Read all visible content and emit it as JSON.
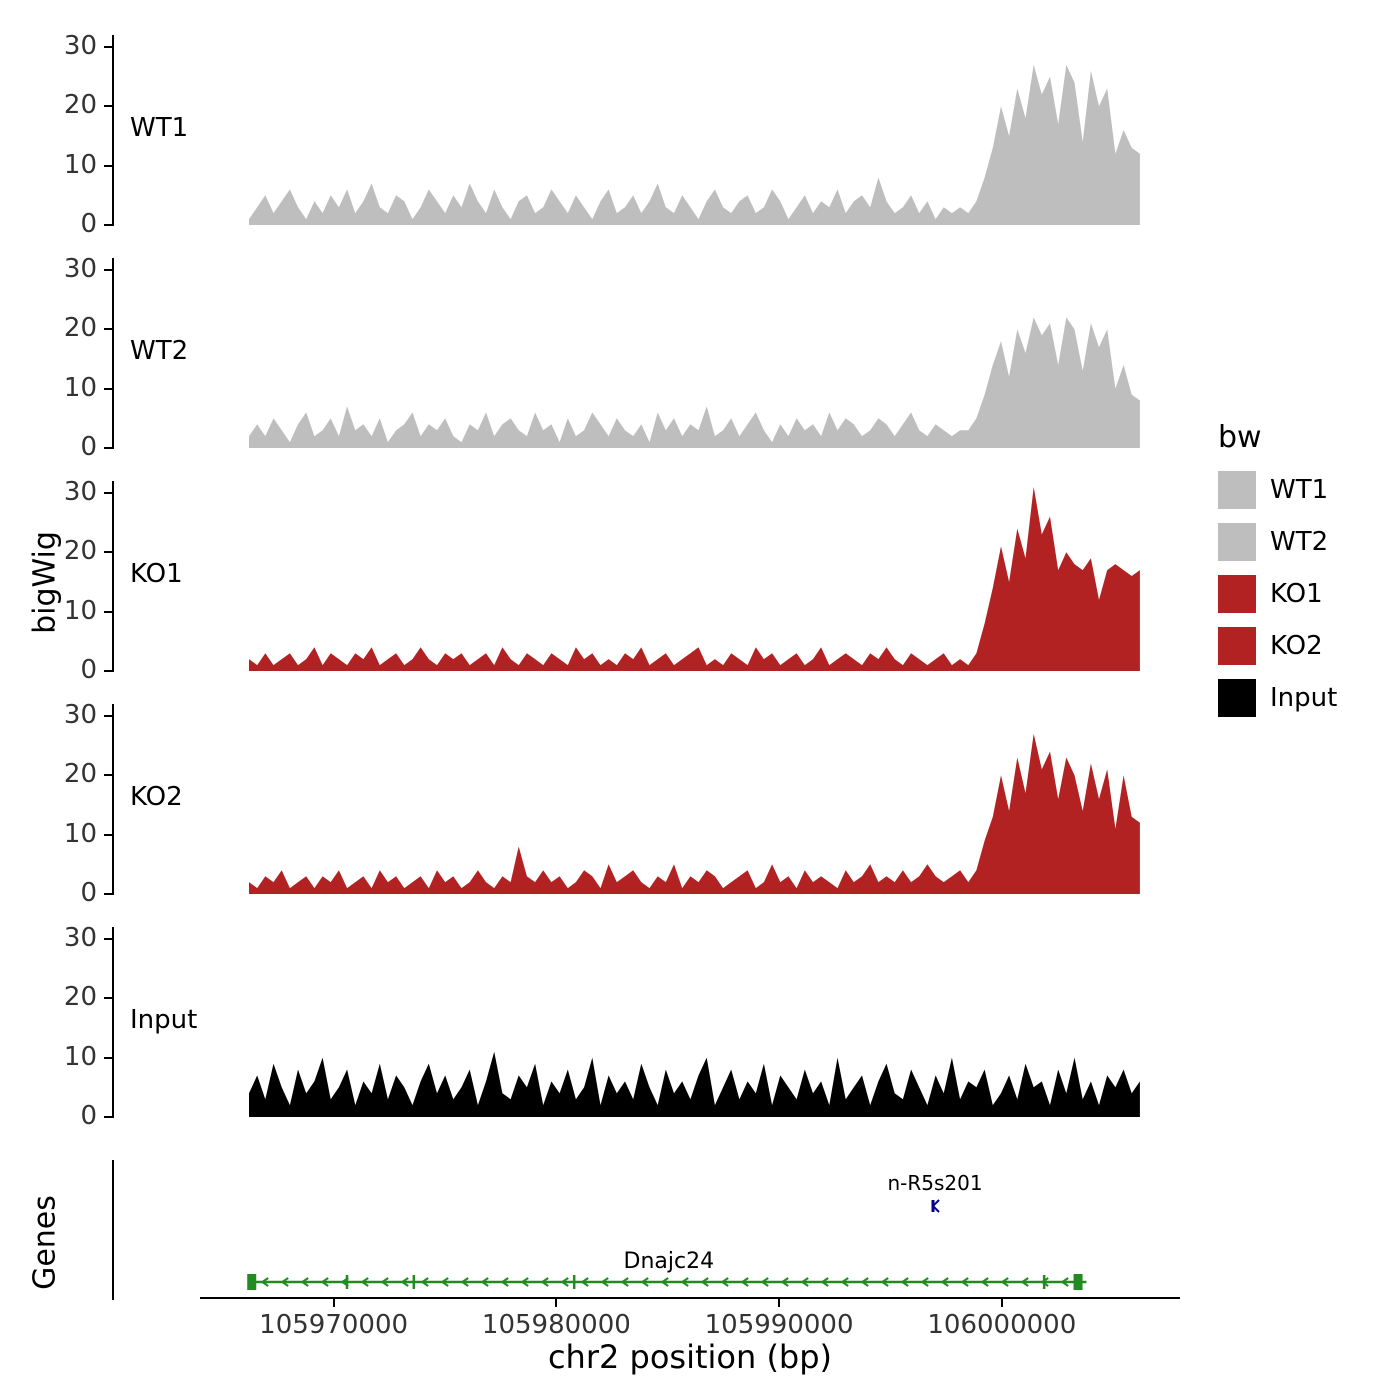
{
  "ylabel": "bigWig",
  "genes_panel_label": "Genes",
  "xlabel": "chr2 position (bp)",
  "legend": {
    "title": "bw",
    "items": [
      {
        "label": "WT1",
        "color": "#BEBEBE"
      },
      {
        "label": "WT2",
        "color": "#BEBEBE"
      },
      {
        "label": "KO1",
        "color": "#B22222"
      },
      {
        "label": "KO2",
        "color": "#B22222"
      },
      {
        "label": "Input",
        "color": "#000000"
      }
    ]
  },
  "chart_data": {
    "type": "area",
    "title": "",
    "xlabel": "chr2 position (bp)",
    "ylabel": "bigWig",
    "x_axis": {
      "min": 105964000,
      "max": 106008000,
      "ticks": [
        105970000,
        105980000,
        105990000,
        106000000
      ]
    },
    "y_axis": {
      "min": 0,
      "max": 32,
      "ticks": [
        0,
        10,
        20,
        30
      ]
    },
    "signal_bp_start": 105966200,
    "signal_bp_end": 106006200,
    "tracks": [
      {
        "name": "WT1",
        "color": "#BEBEBE",
        "values": [
          1,
          3,
          5,
          2,
          4,
          6,
          3,
          1,
          4,
          2,
          5,
          3,
          6,
          2,
          4,
          7,
          3,
          2,
          5,
          4,
          1,
          3,
          6,
          4,
          2,
          5,
          3,
          7,
          4,
          2,
          6,
          3,
          1,
          4,
          5,
          2,
          3,
          6,
          4,
          2,
          5,
          3,
          1,
          4,
          6,
          2,
          3,
          5,
          2,
          4,
          7,
          3,
          2,
          5,
          3,
          1,
          4,
          6,
          3,
          2,
          4,
          5,
          2,
          3,
          6,
          4,
          1,
          3,
          5,
          2,
          4,
          3,
          6,
          2,
          4,
          5,
          3,
          8,
          4,
          2,
          3,
          5,
          2,
          4,
          1,
          3,
          2,
          3,
          2,
          4,
          8,
          13,
          20,
          15,
          23,
          18,
          27,
          22,
          25,
          17,
          27,
          24,
          14,
          26,
          20,
          23,
          12,
          16,
          13,
          12
        ]
      },
      {
        "name": "WT2",
        "color": "#BEBEBE",
        "values": [
          2,
          4,
          2,
          5,
          3,
          1,
          4,
          6,
          2,
          3,
          5,
          2,
          7,
          3,
          4,
          2,
          5,
          1,
          3,
          4,
          6,
          2,
          4,
          3,
          5,
          2,
          1,
          4,
          3,
          6,
          2,
          4,
          5,
          3,
          2,
          6,
          3,
          4,
          1,
          5,
          2,
          3,
          6,
          4,
          2,
          5,
          3,
          2,
          4,
          1,
          6,
          3,
          5,
          2,
          4,
          3,
          7,
          2,
          3,
          5,
          2,
          4,
          6,
          3,
          1,
          4,
          2,
          5,
          3,
          4,
          2,
          6,
          3,
          5,
          4,
          2,
          3,
          5,
          4,
          2,
          4,
          6,
          3,
          2,
          4,
          3,
          2,
          3,
          3,
          5,
          9,
          14,
          18,
          12,
          20,
          16,
          22,
          19,
          21,
          14,
          22,
          20,
          13,
          21,
          17,
          20,
          10,
          14,
          9,
          8
        ]
      },
      {
        "name": "KO1",
        "color": "#B22222",
        "values": [
          2,
          1,
          3,
          1,
          2,
          3,
          1,
          2,
          4,
          1,
          3,
          2,
          1,
          3,
          2,
          4,
          1,
          2,
          3,
          1,
          2,
          4,
          2,
          1,
          3,
          2,
          3,
          1,
          2,
          3,
          1,
          4,
          2,
          1,
          3,
          2,
          1,
          3,
          2,
          1,
          4,
          2,
          3,
          1,
          2,
          1,
          3,
          2,
          4,
          1,
          2,
          3,
          1,
          2,
          3,
          4,
          1,
          2,
          1,
          3,
          2,
          1,
          4,
          2,
          3,
          1,
          2,
          3,
          1,
          2,
          4,
          1,
          2,
          3,
          2,
          1,
          3,
          2,
          4,
          2,
          1,
          3,
          2,
          1,
          2,
          3,
          1,
          2,
          1,
          3,
          8,
          14,
          21,
          15,
          24,
          19,
          31,
          23,
          26,
          17,
          20,
          18,
          17,
          19,
          12,
          17,
          18,
          17,
          16,
          17
        ]
      },
      {
        "name": "KO2",
        "color": "#B22222",
        "values": [
          2,
          1,
          3,
          2,
          4,
          1,
          2,
          3,
          1,
          3,
          2,
          4,
          1,
          2,
          3,
          1,
          4,
          2,
          3,
          1,
          2,
          3,
          1,
          4,
          2,
          3,
          1,
          2,
          4,
          2,
          1,
          3,
          2,
          8,
          3,
          2,
          4,
          2,
          3,
          1,
          2,
          4,
          3,
          1,
          5,
          2,
          3,
          4,
          2,
          1,
          3,
          2,
          5,
          1,
          3,
          2,
          4,
          3,
          1,
          2,
          3,
          4,
          1,
          2,
          5,
          2,
          3,
          1,
          4,
          2,
          3,
          2,
          1,
          4,
          2,
          3,
          5,
          2,
          3,
          2,
          4,
          2,
          3,
          5,
          3,
          2,
          3,
          4,
          2,
          4,
          9,
          13,
          20,
          14,
          23,
          17,
          27,
          21,
          24,
          16,
          23,
          20,
          14,
          22,
          16,
          21,
          11,
          20,
          13,
          12
        ]
      },
      {
        "name": "Input",
        "color": "#000000",
        "values": [
          4,
          7,
          3,
          9,
          5,
          2,
          8,
          4,
          6,
          10,
          3,
          5,
          8,
          2,
          6,
          4,
          9,
          3,
          7,
          5,
          2,
          6,
          9,
          4,
          7,
          3,
          5,
          8,
          2,
          6,
          11,
          4,
          3,
          7,
          5,
          9,
          2,
          6,
          4,
          8,
          3,
          5,
          10,
          2,
          7,
          4,
          6,
          3,
          9,
          5,
          2,
          8,
          4,
          6,
          3,
          7,
          10,
          2,
          5,
          8,
          3,
          6,
          4,
          9,
          2,
          7,
          5,
          3,
          8,
          4,
          6,
          2,
          10,
          3,
          5,
          7,
          2,
          6,
          9,
          4,
          3,
          8,
          5,
          2,
          7,
          4,
          10,
          3,
          6,
          5,
          8,
          2,
          4,
          7,
          3,
          9,
          5,
          6,
          2,
          8,
          4,
          10,
          3,
          6,
          2,
          7,
          5,
          8,
          4,
          6
        ]
      }
    ],
    "genes": [
      {
        "name": "Dnajc24",
        "color": "#228B22",
        "strand": "-",
        "start": 105966300,
        "end": 106003800,
        "exons": [
          105966300,
          105970600,
          105973600,
          105980800,
          106001900,
          106003400
        ]
      },
      {
        "name": "n-R5s201",
        "color": "#00008B",
        "strand": "-",
        "position": 105997000
      }
    ]
  }
}
